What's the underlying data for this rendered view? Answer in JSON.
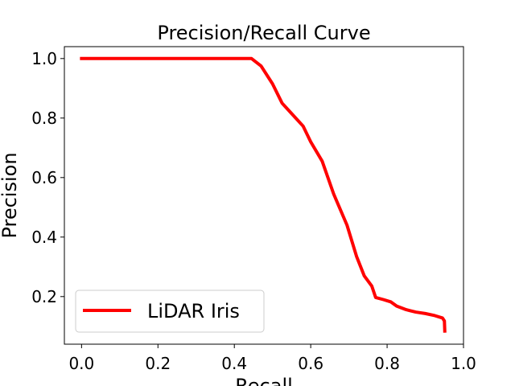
{
  "chart_data": {
    "type": "line",
    "title": "Precision/Recall Curve",
    "xlabel": "Recall",
    "ylabel": "Precision",
    "xlim": [
      -0.045,
      1.0
    ],
    "ylim": [
      0.04,
      1.04
    ],
    "xticks": [
      0.0,
      0.2,
      0.4,
      0.6,
      0.8,
      1.0
    ],
    "xtick_labels": [
      "0.0",
      "0.2",
      "0.4",
      "0.6",
      "0.8",
      "1.0"
    ],
    "yticks": [
      0.2,
      0.4,
      0.6,
      0.8,
      1.0
    ],
    "ytick_labels": [
      "0.2",
      "0.4",
      "0.6",
      "0.8",
      "1.0"
    ],
    "grid": false,
    "legend_position": "lower-left",
    "series": [
      {
        "name": "LiDAR Iris",
        "color": "#ff0000",
        "x": [
          0.0,
          0.1,
          0.2,
          0.3,
          0.4,
          0.445,
          0.47,
          0.5,
          0.525,
          0.55,
          0.58,
          0.6,
          0.63,
          0.66,
          0.695,
          0.72,
          0.74,
          0.76,
          0.77,
          0.79,
          0.81,
          0.825,
          0.85,
          0.875,
          0.9,
          0.925,
          0.945,
          0.95,
          0.951
        ],
        "y": [
          1.0,
          1.0,
          1.0,
          1.0,
          1.0,
          1.0,
          0.975,
          0.915,
          0.85,
          0.815,
          0.773,
          0.72,
          0.655,
          0.545,
          0.44,
          0.335,
          0.27,
          0.235,
          0.197,
          0.19,
          0.182,
          0.168,
          0.156,
          0.148,
          0.143,
          0.136,
          0.128,
          0.118,
          0.084
        ]
      }
    ]
  }
}
